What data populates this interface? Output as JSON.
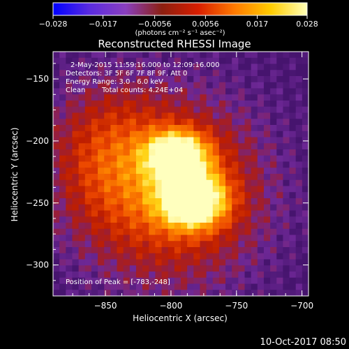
{
  "chart_data": {
    "type": "heatmap",
    "title": "Reconstructed RHESSI Image",
    "xlabel": "Heliocentric X (arcsec)",
    "ylabel": "Heliocentric Y (arcsec)",
    "xlim": [
      -890,
      -695
    ],
    "ylim": [
      -325,
      -128
    ],
    "x_ticks": [
      -850,
      -800,
      -750,
      -700
    ],
    "x_tick_labels": [
      "−850",
      "−800",
      "−750",
      "−700"
    ],
    "y_ticks": [
      -150,
      -200,
      -250,
      -300
    ],
    "y_tick_labels": [
      "−150",
      "−200",
      "−250",
      "−300"
    ],
    "colorbar": {
      "range": [
        -0.028,
        0.028
      ],
      "ticks": [
        -0.028,
        -0.017,
        -0.0056,
        0.0056,
        0.017,
        0.028
      ],
      "tick_labels": [
        "−0.028",
        "−0.017",
        "−0.0056",
        "0.0056",
        "0.017",
        "0.028"
      ],
      "units_label": "(photons cm⁻² s⁻¹ asec⁻²)",
      "colors": [
        "#0000ff",
        "#5a2be0",
        "#8a3fbf",
        "#8c1f10",
        "#d81e00",
        "#ff7a00",
        "#ffcc00",
        "#ffffb8"
      ]
    },
    "sources": [
      {
        "x": -795,
        "y": -212,
        "peak": 0.026
      },
      {
        "x": -783,
        "y": -248,
        "peak": 0.028
      }
    ],
    "peak_position": [
      -783,
      -248
    ]
  },
  "annotations": {
    "time_range": "2-May-2015 11:59:16.000 to 12:09:16.000",
    "detectors": "Detectors: 3F 5F 6F 7F 8F 9F, Att 0",
    "energy_range": "Energy Range: 3.0 - 6.0 keV",
    "algorithm": "Clean",
    "total_counts": "Total counts: 4.24E+04",
    "peak_label": "Position of Peak = [-783,-248]"
  },
  "footer": {
    "timestamp": "10-Oct-2017 08:50"
  }
}
